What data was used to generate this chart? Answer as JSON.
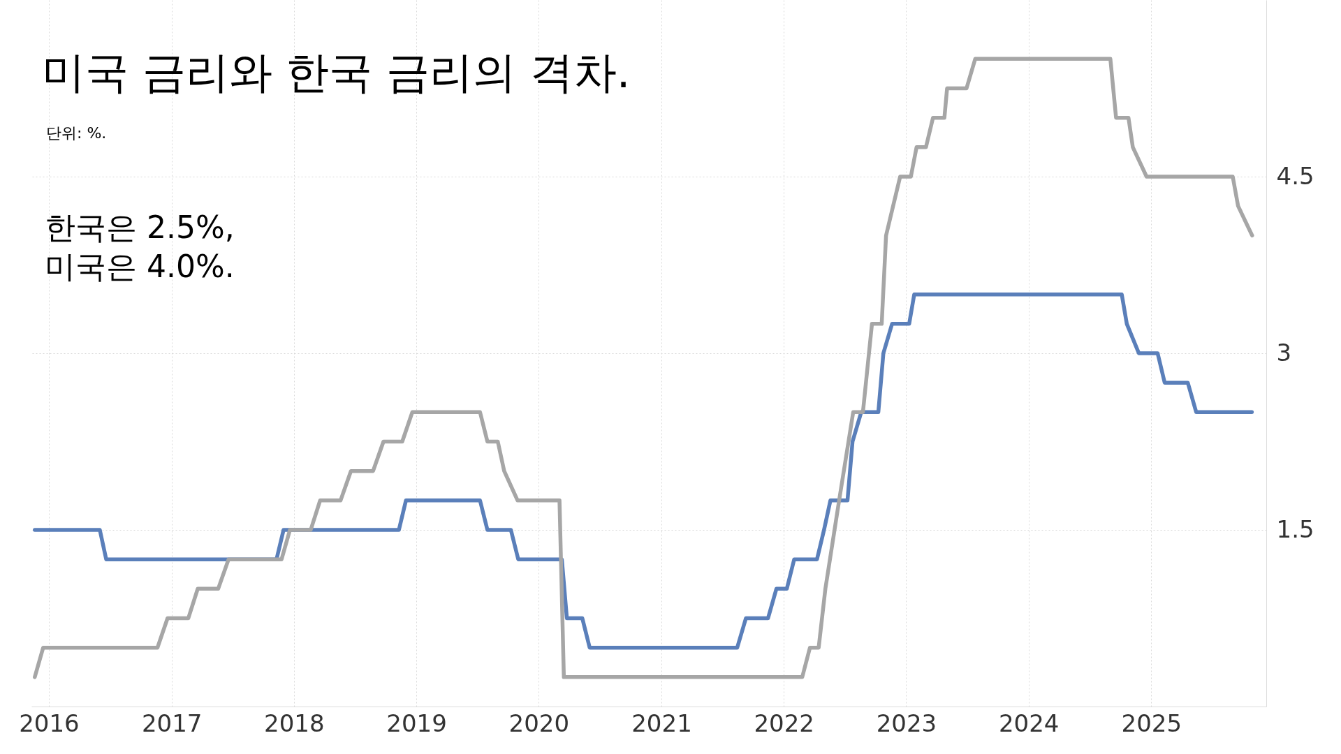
{
  "chart_data": {
    "type": "line",
    "title": "미국 금리와 한국 금리의 격차.",
    "subtitle": "단위: %.",
    "annotations": [
      "한국은 2.5%,\n미국은 4.0%."
    ],
    "series": [
      {
        "color": "#5a7fba",
        "x": [
          "2015-11-20",
          "2016-06-01",
          "2016-06-20",
          "2017-11-10",
          "2017-12-01",
          "2018-11-10",
          "2018-12-01",
          "2019-07-10",
          "2019-08-01",
          "2019-10-10",
          "2019-11-01",
          "2020-03-10",
          "2020-03-25",
          "2020-05-10",
          "2020-06-01",
          "2021-08-15",
          "2021-09-10",
          "2021-11-15",
          "2021-12-10",
          "2022-01-10",
          "2022-02-01",
          "2022-04-10",
          "2022-05-01",
          "2022-05-20",
          "2022-07-10",
          "2022-07-25",
          "2022-08-20",
          "2022-10-10",
          "2022-10-25",
          "2022-11-20",
          "2023-01-10",
          "2023-01-25",
          "2024-10-05",
          "2024-10-20",
          "2024-11-25",
          "2025-01-20",
          "2025-02-10",
          "2025-04-20",
          "2025-05-15",
          "2025-10-28"
        ],
        "values": [
          1.5,
          1.5,
          1.25,
          1.25,
          1.5,
          1.5,
          1.75,
          1.75,
          1.5,
          1.5,
          1.25,
          1.25,
          0.75,
          0.75,
          0.5,
          0.5,
          0.75,
          0.75,
          1.0,
          1.0,
          1.25,
          1.25,
          1.5,
          1.75,
          1.75,
          2.25,
          2.5,
          2.5,
          3.0,
          3.25,
          3.25,
          3.5,
          3.5,
          3.25,
          3.0,
          3.0,
          2.75,
          2.75,
          2.5,
          2.5
        ]
      },
      {
        "color": "#a6a6a6",
        "x": [
          "2015-11-20",
          "2015-12-15",
          "2016-11-20",
          "2016-12-20",
          "2017-02-20",
          "2017-03-20",
          "2017-05-20",
          "2017-06-20",
          "2017-11-25",
          "2017-12-20",
          "2018-02-20",
          "2018-03-20",
          "2018-05-20",
          "2018-06-20",
          "2018-08-25",
          "2018-09-25",
          "2018-11-20",
          "2018-12-20",
          "2019-07-10",
          "2019-08-01",
          "2019-09-01",
          "2019-09-20",
          "2019-10-30",
          "2020-03-03",
          "2020-03-16",
          "2022-02-25",
          "2022-03-20",
          "2022-04-15",
          "2022-05-05",
          "2022-06-15",
          "2022-07-27",
          "2022-08-25",
          "2022-09-21",
          "2022-10-20",
          "2022-11-02",
          "2022-12-14",
          "2023-01-15",
          "2023-02-01",
          "2023-03-01",
          "2023-03-22",
          "2023-04-25",
          "2023-05-03",
          "2023-06-30",
          "2023-07-26",
          "2024-09-01",
          "2024-09-18",
          "2024-10-25",
          "2024-11-07",
          "2024-12-18",
          "2025-09-01",
          "2025-09-17",
          "2025-10-29"
        ],
        "values": [
          0.25,
          0.5,
          0.5,
          0.75,
          0.75,
          1.0,
          1.0,
          1.25,
          1.25,
          1.5,
          1.5,
          1.75,
          1.75,
          2.0,
          2.0,
          2.25,
          2.25,
          2.5,
          2.5,
          2.25,
          2.25,
          2.0,
          1.75,
          1.75,
          0.25,
          0.25,
          0.5,
          0.5,
          1.0,
          1.75,
          2.5,
          2.5,
          3.25,
          3.25,
          4.0,
          4.5,
          4.5,
          4.75,
          4.75,
          5.0,
          5.0,
          5.25,
          5.25,
          5.5,
          5.5,
          5.0,
          5.0,
          4.75,
          4.5,
          4.5,
          4.25,
          4.0
        ]
      }
    ],
    "xlim": [
      "2015-11-10",
      "2025-12-10"
    ],
    "xticks": [
      {
        "value": "2016",
        "label": "2016"
      },
      {
        "value": "2017",
        "label": "2017"
      },
      {
        "value": "2018",
        "label": "2018"
      },
      {
        "value": "2019",
        "label": "2019"
      },
      {
        "value": "2020",
        "label": "2020"
      },
      {
        "value": "2021",
        "label": "2021"
      },
      {
        "value": "2022",
        "label": "2022"
      },
      {
        "value": "2023",
        "label": "2023"
      },
      {
        "value": "2024",
        "label": "2024"
      },
      {
        "value": "2025",
        "label": "2025"
      }
    ],
    "ylim": [
      0,
      6
    ],
    "yticks": [
      1.5,
      3,
      4.5
    ],
    "grid": true,
    "line_style": "solid",
    "marker": "none"
  }
}
